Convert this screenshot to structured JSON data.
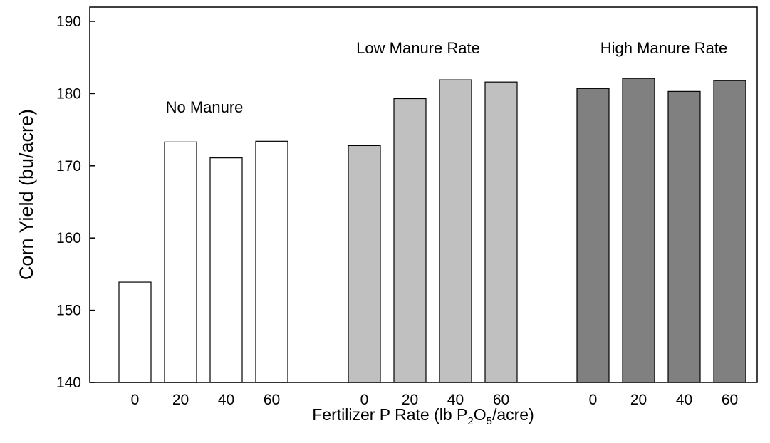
{
  "chart_data": {
    "type": "bar",
    "title": "",
    "ylabel": "Corn Yield (bu/acre)",
    "xlabel": {
      "prefix": "Fertilizer P Rate (lb P",
      "sub1": "2",
      "mid": "O",
      "sub2": "5",
      "suffix": "/acre)"
    },
    "ylim": [
      140,
      190
    ],
    "yticks": [
      140,
      150,
      160,
      170,
      180,
      190
    ],
    "categories": [
      "0",
      "20",
      "40",
      "60"
    ],
    "grid": false,
    "groups": [
      {
        "name": "No Manure",
        "color": "#ffffff",
        "values": [
          153.9,
          173.3,
          171.1,
          173.4
        ]
      },
      {
        "name": "Low Manure Rate",
        "color": "#c0c0c0",
        "values": [
          172.8,
          179.3,
          181.9,
          181.6
        ]
      },
      {
        "name": "High Manure Rate",
        "color": "#808080",
        "values": [
          180.7,
          182.1,
          180.3,
          181.8
        ]
      }
    ]
  }
}
